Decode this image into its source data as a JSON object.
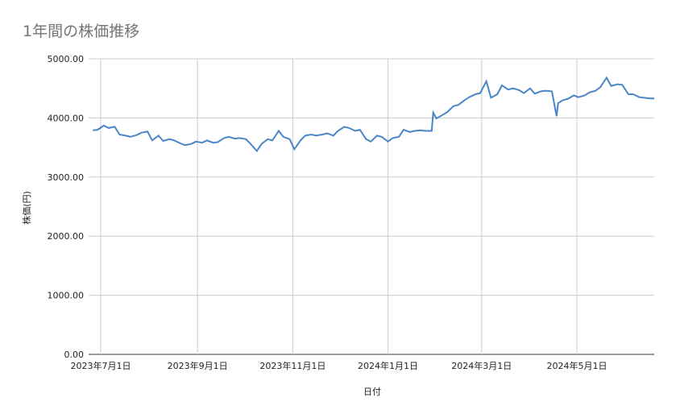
{
  "chart_data": {
    "type": "line",
    "title": "1年間の株価推移",
    "xlabel": "日付",
    "ylabel": "株価(円)",
    "ylim": [
      0,
      5000
    ],
    "yticks": [
      "0.00",
      "1000.00",
      "2000.00",
      "3000.00",
      "4000.00",
      "5000.00"
    ],
    "xticks": [
      "2023年7月1日",
      "2023年9月1日",
      "2023年11月1日",
      "2024年1月1日",
      "2024年3月1日",
      "2024年5月1日"
    ],
    "grid": true,
    "legend": "none",
    "series_color": "#4a86c8",
    "series": [
      {
        "x": [
          "2023-06-26",
          "2023-06-29",
          "2023-07-03",
          "2023-07-06",
          "2023-07-10",
          "2023-07-13",
          "2023-07-17",
          "2023-07-20",
          "2023-07-24",
          "2023-07-27",
          "2023-07-31",
          "2023-08-03",
          "2023-08-07",
          "2023-08-10",
          "2023-08-14",
          "2023-08-17",
          "2023-08-21",
          "2023-08-24",
          "2023-08-28",
          "2023-08-31",
          "2023-09-04",
          "2023-09-07",
          "2023-09-11",
          "2023-09-14",
          "2023-09-18",
          "2023-09-21",
          "2023-09-25",
          "2023-09-28",
          "2023-10-02",
          "2023-10-05",
          "2023-10-09",
          "2023-10-12",
          "2023-10-16",
          "2023-10-19",
          "2023-10-23",
          "2023-10-26",
          "2023-10-30",
          "2023-11-02",
          "2023-11-06",
          "2023-11-09",
          "2023-11-13",
          "2023-11-16",
          "2023-11-20",
          "2023-11-23",
          "2023-11-27",
          "2023-11-30",
          "2023-12-04",
          "2023-12-07",
          "2023-12-11",
          "2023-12-14",
          "2023-12-18",
          "2023-12-21",
          "2023-12-25",
          "2023-12-28",
          "2024-01-01",
          "2024-01-04",
          "2024-01-08",
          "2024-01-11",
          "2024-01-15",
          "2024-01-18",
          "2024-01-22",
          "2024-01-25",
          "2024-01-29",
          "2024-01-30",
          "2024-02-01",
          "2024-02-05",
          "2024-02-08",
          "2024-02-12",
          "2024-02-15",
          "2024-02-19",
          "2024-02-22",
          "2024-02-26",
          "2024-02-29",
          "2024-03-04",
          "2024-03-07",
          "2024-03-11",
          "2024-03-14",
          "2024-03-18",
          "2024-03-21",
          "2024-03-25",
          "2024-03-28",
          "2024-04-01",
          "2024-04-04",
          "2024-04-08",
          "2024-04-11",
          "2024-04-15",
          "2024-04-18",
          "2024-04-19",
          "2024-04-22",
          "2024-04-25",
          "2024-04-29",
          "2024-05-02",
          "2024-05-06",
          "2024-05-09",
          "2024-05-13",
          "2024-05-16",
          "2024-05-20",
          "2024-05-23",
          "2024-05-27",
          "2024-05-30",
          "2024-06-03",
          "2024-06-06",
          "2024-06-10",
          "2024-06-13",
          "2024-06-17",
          "2024-06-20",
          "2024-06-24"
        ],
        "y": [
          3790,
          3800,
          3870,
          3830,
          3850,
          3720,
          3700,
          3680,
          3710,
          3750,
          3770,
          3620,
          3700,
          3610,
          3640,
          3620,
          3570,
          3540,
          3560,
          3600,
          3580,
          3620,
          3580,
          3590,
          3660,
          3680,
          3650,
          3660,
          3640,
          3560,
          3440,
          3560,
          3640,
          3620,
          3780,
          3680,
          3640,
          3470,
          3620,
          3700,
          3720,
          3700,
          3720,
          3740,
          3700,
          3780,
          3850,
          3830,
          3780,
          3800,
          3640,
          3600,
          3700,
          3680,
          3600,
          3660,
          3680,
          3800,
          3760,
          3780,
          3790,
          3780,
          3780,
          4090,
          3990,
          4050,
          4100,
          4200,
          4220,
          4300,
          4350,
          4400,
          4420,
          4620,
          4340,
          4400,
          4550,
          4480,
          4500,
          4470,
          4420,
          4500,
          4410,
          4450,
          4460,
          4450,
          4030,
          4250,
          4300,
          4320,
          4380,
          4350,
          4380,
          4430,
          4460,
          4520,
          4680,
          4540,
          4570,
          4560,
          4400,
          4400,
          4350,
          4340,
          4330,
          4330,
          4330
        ]
      }
    ]
  }
}
